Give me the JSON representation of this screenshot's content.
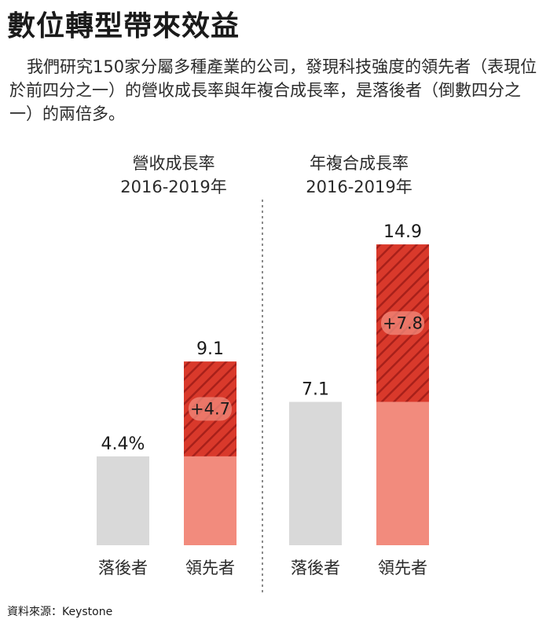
{
  "title": "數位轉型帶來效益",
  "description": "我們研究150家分屬多種產業的公司，發現科技強度的領先者（表現位於前四分之一）的營收成長率與年複合成長率，是落後者（倒數四分之一）的兩倍多。",
  "source": "資料來源：Keystone",
  "colors": {
    "laggard": "#d9d9d9",
    "leader_base": "#f28b7d",
    "leader_increment": "#d9392b",
    "hatch_stripe": "#a8201a"
  },
  "chart_data": [
    {
      "type": "bar",
      "title_line1": "營收成長率",
      "title_line2": "2016-2019年",
      "categories": [
        "落後者",
        "領先者"
      ],
      "values": [
        4.4,
        9.1
      ],
      "value_labels": [
        "4.4%",
        "9.1"
      ],
      "increment_label": "+4.7",
      "legend": false,
      "grid": false
    },
    {
      "type": "bar",
      "title_line1": "年複合成長率",
      "title_line2": "2016-2019年",
      "categories": [
        "落後者",
        "領先者"
      ],
      "values": [
        7.1,
        14.9
      ],
      "value_labels": [
        "7.1",
        "14.9"
      ],
      "increment_label": "+7.8",
      "legend": false,
      "grid": false
    }
  ]
}
